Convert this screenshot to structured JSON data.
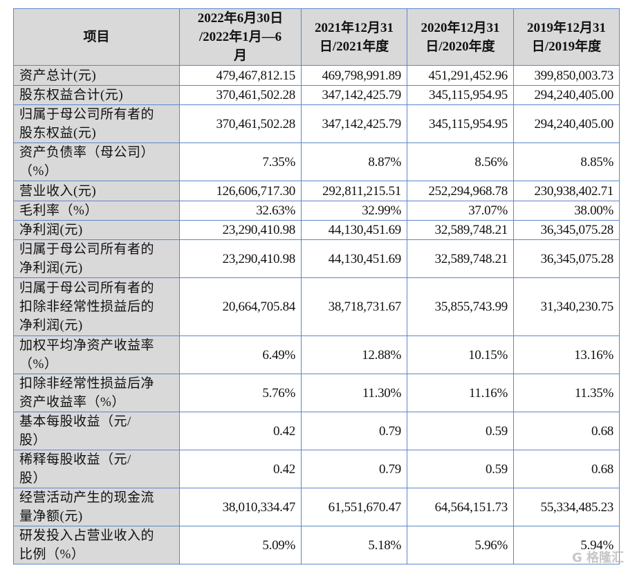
{
  "table": {
    "headers": [
      "项目",
      "2022年6月30日\n/2022年1月—6\n月",
      "2021年12月31\n日/2021年度",
      "2020年12月31\n日/2020年度",
      "2019年12月31\n日/2019年度"
    ],
    "rows": [
      {
        "label": "资产总计(元)",
        "values": [
          "479,467,812.15",
          "469,798,991.89",
          "451,291,452.96",
          "399,850,003.73"
        ]
      },
      {
        "label": "股东权益合计(元)",
        "values": [
          "370,461,502.28",
          "347,142,425.79",
          "345,115,954.95",
          "294,240,405.00"
        ]
      },
      {
        "label": "归属于母公司所有者的\n股东权益(元)",
        "values": [
          "370,461,502.28",
          "347,142,425.79",
          "345,115,954.95",
          "294,240,405.00"
        ]
      },
      {
        "label": "资产负债率（母公司）\n（%）",
        "values": [
          "7.35%",
          "8.87%",
          "8.56%",
          "8.85%"
        ]
      },
      {
        "label": "营业收入(元)",
        "values": [
          "126,606,717.30",
          "292,811,215.51",
          "252,294,968.78",
          "230,938,402.71"
        ]
      },
      {
        "label": "毛利率（%）",
        "values": [
          "32.63%",
          "32.99%",
          "37.07%",
          "38.00%"
        ]
      },
      {
        "label": "净利润(元)",
        "values": [
          "23,290,410.98",
          "44,130,451.69",
          "32,589,748.21",
          "36,345,075.28"
        ]
      },
      {
        "label": "归属于母公司所有者的\n净利润(元)",
        "values": [
          "23,290,410.98",
          "44,130,451.69",
          "32,589,748.21",
          "36,345,075.28"
        ]
      },
      {
        "label": "归属于母公司所有者的\n扣除非经常性损益后的\n净利润(元)",
        "values": [
          "20,664,705.84",
          "38,718,731.67",
          "35,855,743.99",
          "31,340,230.75"
        ]
      },
      {
        "label": "加权平均净资产收益率\n（%）",
        "values": [
          "6.49%",
          "12.88%",
          "10.15%",
          "13.16%"
        ]
      },
      {
        "label": "扣除非经常性损益后净\n资产收益率（%）",
        "values": [
          "5.76%",
          "11.30%",
          "11.16%",
          "11.35%"
        ]
      },
      {
        "label": "基本每股收益（元/\n股）",
        "values": [
          "0.42",
          "0.79",
          "0.59",
          "0.68"
        ]
      },
      {
        "label": "稀释每股收益（元/\n股）",
        "values": [
          "0.42",
          "0.79",
          "0.59",
          "0.68"
        ]
      },
      {
        "label": "经营活动产生的现金流\n量净额(元)",
        "values": [
          "38,010,334.47",
          "61,551,670.47",
          "64,564,151.73",
          "55,334,485.23"
        ]
      },
      {
        "label": "研发投入占营业收入的\n比例（%）",
        "values": [
          "5.09%",
          "5.18%",
          "5.96%",
          "5.94%"
        ]
      }
    ]
  },
  "watermark": "格隆汇",
  "colors": {
    "header_bg": "#d9d9d9",
    "border": "#5b86c9"
  }
}
